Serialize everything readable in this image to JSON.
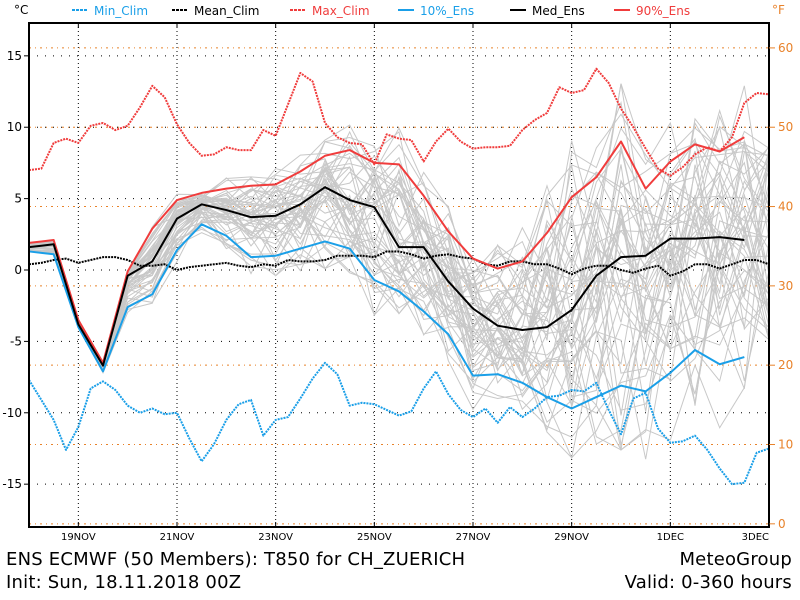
{
  "chart_data": {
    "type": "line",
    "title": "ENS ECMWF (50 Members): T850 for CH_ZUERICH",
    "subtitle": "Init: Sun, 18.11.2018 00Z",
    "provider": "MeteoGroup",
    "valid": "Valid: 0-360 hours",
    "ylabel_left": "°C",
    "ylabel_right": "°F",
    "xlabel": "",
    "x_unit": "hours since init",
    "xlim": [
      0,
      360
    ],
    "ylim": [
      -18,
      17.3
    ],
    "grid": true,
    "legend_position": "top",
    "x_ticks": [
      {
        "hour": 24,
        "label": "19NOV"
      },
      {
        "hour": 72,
        "label": "21NOV"
      },
      {
        "hour": 120,
        "label": "23NOV"
      },
      {
        "hour": 168,
        "label": "25NOV"
      },
      {
        "hour": 216,
        "label": "27NOV"
      },
      {
        "hour": 264,
        "label": "29NOV"
      },
      {
        "hour": 312,
        "label": "1DEC"
      },
      {
        "hour": 360,
        "label": "3DEC"
      }
    ],
    "y_ticks_c": [
      15,
      10,
      5,
      0,
      -5,
      -10,
      -15
    ],
    "y_ticks_f": [
      60,
      50,
      40,
      30,
      20,
      10,
      0
    ],
    "colors": {
      "min": "#1a9fe8",
      "mean": "#000000",
      "max": "#f03c3c",
      "members": "#c8c8c8",
      "f_grid": "#e8822a",
      "c_grid": "#000000"
    },
    "legend": [
      {
        "label": "Min_Clim",
        "style": "dashed",
        "color": "#1a9fe8"
      },
      {
        "label": "Mean_Clim",
        "style": "dashed",
        "color": "#000000"
      },
      {
        "label": "Max_Clim",
        "style": "dashed",
        "color": "#f03c3c"
      },
      {
        "label": "10%_Ens",
        "style": "solid",
        "color": "#1a9fe8"
      },
      {
        "label": "Med_Ens",
        "style": "solid",
        "color": "#000000"
      },
      {
        "label": "90%_Ens",
        "style": "solid",
        "color": "#f03c3c"
      }
    ],
    "ens_hours": [
      0,
      6,
      12,
      24,
      36,
      48,
      60,
      72,
      84,
      96,
      108,
      120,
      132,
      144,
      156,
      168,
      180,
      192,
      204,
      216,
      228,
      240,
      252,
      264,
      276,
      288,
      300,
      312,
      324,
      336,
      348
    ],
    "series": [
      {
        "name": "90%_Ens",
        "style": "solid",
        "color": "#f03c3c",
        "values": [
          1.9,
          2.0,
          2.1,
          -3.5,
          -6.5,
          -0.1,
          2.9,
          4.9,
          5.4,
          5.7,
          5.9,
          6.0,
          6.9,
          8.0,
          8.4,
          7.5,
          7.4,
          5.2,
          2.7,
          0.8,
          0.1,
          0.6,
          2.6,
          5.1,
          6.5,
          9.0,
          5.7,
          7.6,
          8.8,
          8.3,
          9.3
        ]
      },
      {
        "name": "Med_Ens",
        "style": "solid",
        "color": "#000000",
        "values": [
          1.6,
          1.7,
          1.8,
          -3.8,
          -6.7,
          -0.4,
          0.6,
          3.6,
          4.6,
          4.2,
          3.7,
          3.8,
          4.6,
          5.8,
          4.9,
          4.4,
          1.6,
          1.6,
          -0.8,
          -2.7,
          -3.9,
          -4.2,
          -4.0,
          -2.8,
          -0.4,
          0.9,
          1.0,
          2.2,
          2.2,
          2.3,
          2.1
        ]
      },
      {
        "name": "10%_Ens",
        "style": "solid",
        "color": "#1a9fe8",
        "values": [
          1.3,
          1.2,
          1.1,
          -4.0,
          -7.1,
          -2.6,
          -1.7,
          1.4,
          3.2,
          2.4,
          0.9,
          1.0,
          1.5,
          2.0,
          1.5,
          -0.7,
          -1.5,
          -2.9,
          -4.5,
          -7.4,
          -7.3,
          -7.9,
          -8.9,
          -9.7,
          -8.9,
          -8.1,
          -8.5,
          -7.2,
          -5.6,
          -6.6,
          -6.1
        ]
      },
      {
        "name": "Mean_Clim",
        "style": "dashed",
        "color": "#000000",
        "hours": [
          0,
          6,
          12,
          18,
          24,
          30,
          36,
          42,
          48,
          54,
          60,
          66,
          72,
          78,
          84,
          90,
          96,
          102,
          108,
          114,
          120,
          126,
          132,
          138,
          144,
          150,
          156,
          162,
          168,
          174,
          180,
          186,
          192,
          198,
          204,
          210,
          216,
          222,
          228,
          234,
          240,
          246,
          252,
          258,
          264,
          270,
          276,
          282,
          288,
          294,
          300,
          306,
          312,
          318,
          324,
          330,
          336,
          342,
          348,
          354,
          360
        ],
        "values": [
          0.4,
          0.5,
          0.7,
          0.8,
          0.5,
          0.7,
          0.9,
          0.9,
          0.7,
          0.3,
          0.3,
          0.4,
          0.0,
          0.2,
          0.3,
          0.4,
          0.5,
          0.3,
          0.2,
          0.4,
          0.3,
          0.7,
          0.6,
          0.6,
          0.7,
          1.0,
          1.0,
          1.0,
          0.9,
          1.3,
          1.3,
          1.1,
          0.8,
          1.0,
          1.1,
          0.9,
          0.8,
          0.4,
          0.3,
          0.6,
          0.6,
          0.4,
          0.4,
          0.1,
          -0.3,
          0.1,
          0.3,
          0.3,
          0.0,
          -0.2,
          0.1,
          0.3,
          -0.4,
          -0.1,
          0.4,
          0.4,
          0.1,
          0.4,
          0.7,
          0.7,
          0.4
        ]
      },
      {
        "name": "Max_Clim",
        "style": "dashed",
        "color": "#f03c3c",
        "hours": [
          0,
          6,
          12,
          18,
          24,
          30,
          36,
          42,
          48,
          54,
          60,
          66,
          72,
          78,
          84,
          90,
          96,
          102,
          108,
          114,
          120,
          126,
          132,
          138,
          144,
          150,
          156,
          162,
          168,
          174,
          180,
          186,
          192,
          198,
          204,
          210,
          216,
          222,
          228,
          234,
          240,
          246,
          252,
          258,
          264,
          270,
          276,
          282,
          288,
          294,
          300,
          306,
          312,
          318,
          324,
          330,
          336,
          342,
          348,
          354,
          360
        ],
        "values": [
          7.0,
          7.1,
          8.9,
          9.2,
          8.9,
          10.1,
          10.3,
          9.8,
          10.1,
          11.4,
          12.9,
          12.1,
          10.2,
          8.9,
          8.0,
          8.1,
          8.6,
          8.4,
          8.4,
          9.8,
          9.4,
          11.6,
          13.8,
          13.2,
          10.3,
          9.3,
          8.9,
          8.8,
          7.4,
          9.5,
          9.2,
          9.1,
          7.6,
          9.0,
          9.9,
          9.0,
          8.5,
          8.6,
          8.6,
          8.7,
          9.8,
          10.5,
          11.0,
          12.8,
          12.4,
          12.6,
          14.1,
          13.1,
          11.3,
          10.0,
          8.5,
          7.1,
          6.6,
          7.2,
          8.1,
          8.6,
          8.3,
          9.3,
          11.7,
          12.4,
          12.3
        ]
      },
      {
        "name": "Min_Clim",
        "style": "dashed",
        "color": "#1a9fe8",
        "hours": [
          0,
          6,
          12,
          18,
          24,
          30,
          36,
          42,
          48,
          54,
          60,
          66,
          72,
          78,
          84,
          90,
          96,
          102,
          108,
          114,
          120,
          126,
          132,
          138,
          144,
          150,
          156,
          162,
          168,
          174,
          180,
          186,
          192,
          198,
          204,
          210,
          216,
          222,
          228,
          234,
          240,
          246,
          252,
          258,
          264,
          270,
          276,
          282,
          288,
          294,
          300,
          306,
          312,
          318,
          324,
          330,
          336,
          342,
          348,
          354,
          360
        ],
        "values": [
          -7.7,
          -9.1,
          -10.5,
          -12.6,
          -11.0,
          -8.3,
          -7.8,
          -8.4,
          -9.5,
          -10.0,
          -9.7,
          -10.1,
          -10.0,
          -11.8,
          -13.4,
          -12.2,
          -10.5,
          -9.4,
          -9.1,
          -11.6,
          -10.5,
          -10.3,
          -9.0,
          -7.6,
          -6.5,
          -7.3,
          -9.5,
          -9.3,
          -9.4,
          -9.8,
          -10.2,
          -9.9,
          -8.3,
          -7.1,
          -8.7,
          -9.8,
          -10.3,
          -9.7,
          -10.7,
          -9.6,
          -10.3,
          -9.7,
          -8.9,
          -8.8,
          -8.4,
          -8.5,
          -7.9,
          -9.8,
          -11.5,
          -9.0,
          -8.6,
          -11.1,
          -12.1,
          -12.0,
          -11.6,
          -12.6,
          -13.9,
          -15.0,
          -14.9,
          -12.8,
          -12.5
        ]
      }
    ],
    "members_count": 50,
    "members_note": "grey spaghetti lines, individual ensemble members spanning roughly between 10% and 90% lines with outliers"
  }
}
